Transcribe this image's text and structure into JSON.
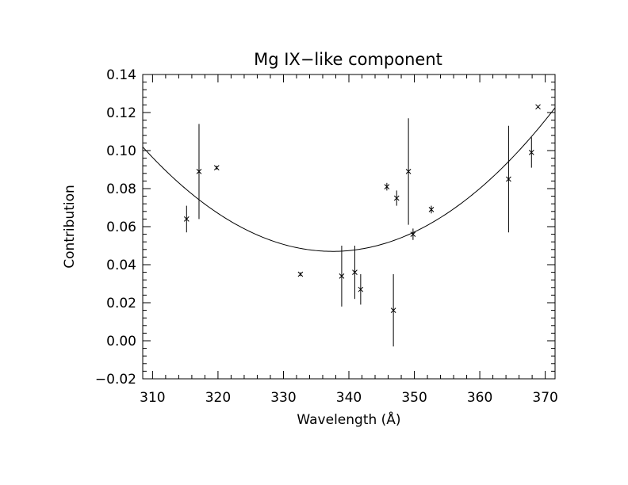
{
  "chart_data": {
    "type": "scatter",
    "title": "Mg IX−like component",
    "xlabel": "Wavelength (Å)",
    "ylabel": "Contribution",
    "xlim": [
      308.5,
      371.5
    ],
    "ylim": [
      -0.02,
      0.14
    ],
    "xticks": [
      310,
      320,
      330,
      340,
      350,
      360,
      370
    ],
    "yticks": [
      -0.02,
      0.0,
      0.02,
      0.04,
      0.06,
      0.08,
      0.1,
      0.12,
      0.14
    ],
    "ytick_labels": [
      "−0.02",
      "0.00",
      "0.02",
      "0.04",
      "0.06",
      "0.08",
      "0.10",
      "0.12",
      "0.14"
    ],
    "grid": false,
    "points": [
      {
        "x": 315.2,
        "y": 0.064,
        "err": 0.007
      },
      {
        "x": 317.1,
        "y": 0.089,
        "err": 0.025
      },
      {
        "x": 319.8,
        "y": 0.091,
        "err": 0.001
      },
      {
        "x": 332.6,
        "y": 0.035,
        "err": 0.001
      },
      {
        "x": 338.9,
        "y": 0.034,
        "err": 0.016
      },
      {
        "x": 340.9,
        "y": 0.036,
        "err": 0.014
      },
      {
        "x": 341.8,
        "y": 0.027,
        "err": 0.008
      },
      {
        "x": 345.8,
        "y": 0.081,
        "err": 0.002
      },
      {
        "x": 346.8,
        "y": 0.016,
        "err": 0.019
      },
      {
        "x": 347.3,
        "y": 0.075,
        "err": 0.004
      },
      {
        "x": 349.1,
        "y": 0.089,
        "err": 0.028
      },
      {
        "x": 349.8,
        "y": 0.056,
        "err": 0.003
      },
      {
        "x": 352.6,
        "y": 0.069,
        "err": 0.002
      },
      {
        "x": 364.4,
        "y": 0.085,
        "err": 0.028
      },
      {
        "x": 367.9,
        "y": 0.099,
        "err": 0.008
      },
      {
        "x": 368.9,
        "y": 0.123,
        "err": 0.0005
      }
    ],
    "fit": {
      "type": "quadratic",
      "vertex_x": 337.5,
      "vertex_y": 0.047,
      "curvature": 6.53e-05
    }
  }
}
